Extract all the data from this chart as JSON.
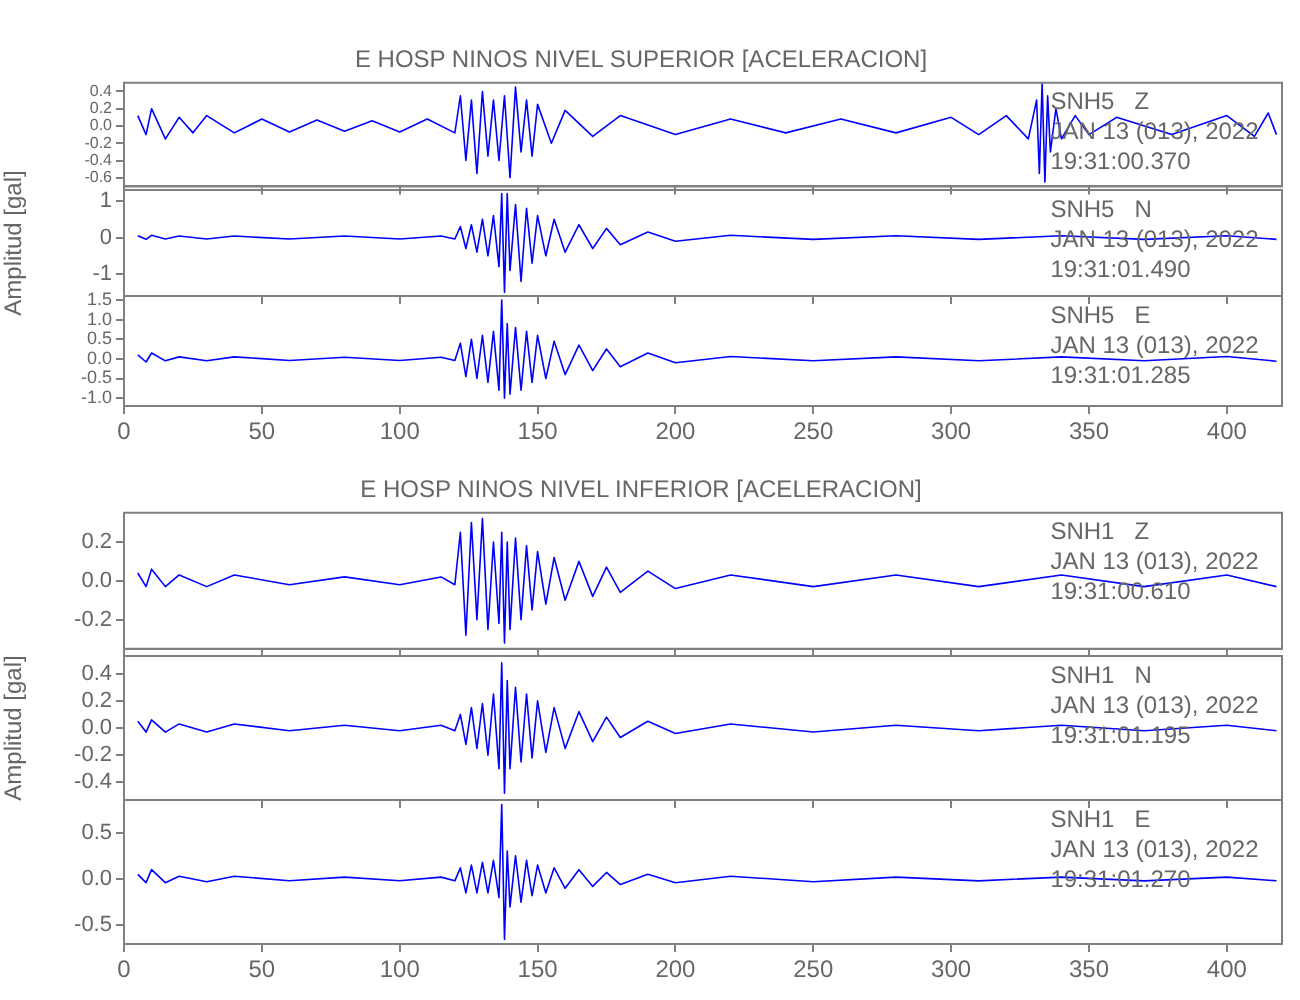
{
  "chart_data": [
    {
      "type": "line",
      "title": "E HOSP NINOS NIVEL SUPERIOR [ACELERACION]",
      "annotations": [
        "SNH5   Z",
        "JAN 13 (013), 2022",
        "19:31:00.370"
      ],
      "x": [
        5,
        8,
        10,
        15,
        20,
        25,
        30,
        40,
        50,
        60,
        70,
        80,
        90,
        100,
        110,
        120,
        122,
        124,
        126,
        128,
        130,
        132,
        134,
        136,
        138,
        140,
        142,
        144,
        146,
        148,
        150,
        155,
        160,
        170,
        180,
        200,
        220,
        240,
        260,
        280,
        300,
        310,
        320,
        328,
        331,
        332,
        333,
        334,
        335,
        336,
        338,
        340,
        345,
        350,
        360,
        380,
        400,
        410,
        415,
        418
      ],
      "series": [
        {
          "color": "#0000ff",
          "values": [
            0.12,
            -0.1,
            0.2,
            -0.15,
            0.1,
            -0.08,
            0.12,
            -0.08,
            0.08,
            -0.07,
            0.07,
            -0.06,
            0.06,
            -0.07,
            0.08,
            -0.08,
            0.35,
            -0.4,
            0.3,
            -0.55,
            0.4,
            -0.35,
            0.3,
            -0.4,
            0.35,
            -0.6,
            0.45,
            -0.3,
            0.3,
            -0.35,
            0.25,
            -0.2,
            0.18,
            -0.12,
            0.12,
            -0.1,
            0.08,
            -0.08,
            0.08,
            -0.08,
            0.1,
            -0.1,
            0.12,
            -0.15,
            0.3,
            -0.55,
            0.5,
            -0.65,
            0.35,
            -0.3,
            0.2,
            -0.15,
            0.12,
            -0.1,
            0.1,
            -0.1,
            0.12,
            -0.12,
            0.15,
            -0.1
          ]
        }
      ],
      "xlim": [
        0,
        420
      ],
      "xticks": [
        0,
        50,
        100,
        150,
        200,
        250,
        300,
        350,
        400
      ],
      "ylim": [
        -0.7,
        0.5
      ],
      "yticks": [
        -0.6,
        -0.4,
        -0.2,
        {
          "value": 0,
          "label": "0.0"
        },
        0.2,
        0.4
      ],
      "grid": false,
      "legend": false,
      "marker": "none",
      "tick_labels": "y"
    },
    {
      "type": "line",
      "ylabel": "Amplitud [gal]",
      "annotations": [
        "SNH5   N",
        "JAN 13 (013), 2022",
        "19:31:01.490"
      ],
      "x": [
        5,
        8,
        10,
        15,
        20,
        30,
        40,
        60,
        80,
        100,
        115,
        120,
        122,
        124,
        126,
        128,
        130,
        132,
        134,
        136,
        137,
        138,
        139,
        140,
        142,
        144,
        146,
        148,
        150,
        153,
        156,
        160,
        165,
        170,
        175,
        180,
        190,
        200,
        220,
        250,
        280,
        310,
        340,
        370,
        400,
        418
      ],
      "series": [
        {
          "color": "#0000ff",
          "values": [
            0.05,
            -0.05,
            0.06,
            -0.04,
            0.04,
            -0.04,
            0.04,
            -0.04,
            0.04,
            -0.04,
            0.04,
            -0.04,
            0.3,
            -0.3,
            0.35,
            -0.4,
            0.5,
            -0.5,
            0.6,
            -0.8,
            1.2,
            -1.5,
            1.2,
            -0.9,
            0.9,
            -1.2,
            0.8,
            -0.7,
            0.6,
            -0.5,
            0.5,
            -0.4,
            0.35,
            -0.3,
            0.25,
            -0.2,
            0.15,
            -0.1,
            0.06,
            -0.05,
            0.05,
            -0.05,
            0.05,
            -0.05,
            0.05,
            -0.05
          ]
        }
      ],
      "xlim": [
        0,
        420
      ],
      "xticks": [
        0,
        50,
        100,
        150,
        200,
        250,
        300,
        350,
        400
      ],
      "ylim": [
        -1.6,
        1.3
      ],
      "yticks": [
        -1,
        0,
        1
      ],
      "grid": false,
      "legend": false,
      "marker": "none",
      "tick_labels": "y"
    },
    {
      "type": "line",
      "annotations": [
        "SNH5   E",
        "JAN 13 (013), 2022",
        "19:31:01.285"
      ],
      "x": [
        5,
        8,
        10,
        15,
        20,
        30,
        40,
        60,
        80,
        100,
        115,
        120,
        122,
        124,
        126,
        128,
        130,
        132,
        134,
        136,
        137,
        138,
        139,
        140,
        142,
        144,
        146,
        148,
        150,
        153,
        156,
        160,
        165,
        170,
        175,
        180,
        190,
        200,
        220,
        250,
        280,
        310,
        340,
        370,
        400,
        418
      ],
      "series": [
        {
          "color": "#0000ff",
          "values": [
            0.1,
            -0.08,
            0.15,
            -0.05,
            0.05,
            -0.05,
            0.05,
            -0.04,
            0.04,
            -0.04,
            0.04,
            -0.04,
            0.4,
            -0.45,
            0.5,
            -0.5,
            0.6,
            -0.6,
            0.7,
            -0.8,
            1.5,
            -1.0,
            0.9,
            -0.9,
            0.8,
            -0.8,
            0.7,
            -0.6,
            0.6,
            -0.5,
            0.45,
            -0.4,
            0.35,
            -0.3,
            0.25,
            -0.2,
            0.15,
            -0.1,
            0.06,
            -0.05,
            0.05,
            -0.05,
            0.05,
            -0.05,
            0.06,
            -0.06
          ]
        }
      ],
      "xlim": [
        0,
        420
      ],
      "xticks": [
        0,
        50,
        100,
        150,
        200,
        250,
        300,
        350,
        400
      ],
      "ylim": [
        -1.2,
        1.6
      ],
      "yticks": [
        {
          "value": -1,
          "label": "-1.0"
        },
        -0.5,
        {
          "value": 0,
          "label": "0.0"
        },
        0.5,
        {
          "value": 1,
          "label": "1.0"
        },
        1.5
      ],
      "grid": false,
      "legend": false,
      "marker": "none"
    },
    {
      "type": "line",
      "title": "E HOSP NINOS NIVEL INFERIOR [ACELERACION]",
      "annotations": [
        "SNH1   Z",
        "JAN 13 (013), 2022",
        "19:31:00.610"
      ],
      "x": [
        5,
        8,
        10,
        15,
        20,
        30,
        40,
        60,
        80,
        100,
        115,
        120,
        122,
        124,
        126,
        128,
        130,
        132,
        134,
        136,
        137,
        138,
        139,
        140,
        142,
        144,
        146,
        148,
        150,
        153,
        156,
        160,
        165,
        170,
        175,
        180,
        190,
        200,
        220,
        250,
        280,
        310,
        340,
        370,
        400,
        418
      ],
      "series": [
        {
          "color": "#0000ff",
          "values": [
            0.04,
            -0.03,
            0.06,
            -0.03,
            0.03,
            -0.03,
            0.03,
            -0.02,
            0.02,
            -0.02,
            0.02,
            -0.02,
            0.25,
            -0.28,
            0.3,
            -0.2,
            0.32,
            -0.25,
            0.2,
            -0.22,
            0.25,
            -0.32,
            0.2,
            -0.25,
            0.22,
            -0.2,
            0.18,
            -0.15,
            0.15,
            -0.12,
            0.12,
            -0.1,
            0.1,
            -0.08,
            0.07,
            -0.06,
            0.05,
            -0.04,
            0.03,
            -0.03,
            0.03,
            -0.03,
            0.03,
            -0.03,
            0.03,
            -0.03
          ]
        }
      ],
      "xlim": [
        0,
        420
      ],
      "xticks": [
        0,
        50,
        100,
        150,
        200,
        250,
        300,
        350,
        400
      ],
      "ylim": [
        -0.35,
        0.35
      ],
      "yticks": [
        -0.2,
        {
          "value": 0,
          "label": "0.0"
        },
        0.2
      ],
      "grid": false,
      "legend": false,
      "marker": "none",
      "tick_labels": "y"
    },
    {
      "type": "line",
      "ylabel": "Amplitud [gal]",
      "annotations": [
        "SNH1   N",
        "JAN 13 (013), 2022",
        "19:31:01.195"
      ],
      "x": [
        5,
        8,
        10,
        15,
        20,
        30,
        40,
        60,
        80,
        100,
        115,
        120,
        122,
        124,
        126,
        128,
        130,
        132,
        134,
        136,
        137,
        138,
        139,
        140,
        142,
        144,
        146,
        148,
        150,
        153,
        156,
        160,
        165,
        170,
        175,
        180,
        190,
        200,
        220,
        250,
        280,
        310,
        340,
        370,
        400,
        418
      ],
      "series": [
        {
          "color": "#0000ff",
          "values": [
            0.05,
            -0.03,
            0.06,
            -0.03,
            0.03,
            -0.03,
            0.03,
            -0.02,
            0.02,
            -0.02,
            0.02,
            -0.02,
            0.1,
            -0.12,
            0.15,
            -0.15,
            0.18,
            -0.2,
            0.25,
            -0.3,
            0.48,
            -0.48,
            0.35,
            -0.3,
            0.3,
            -0.25,
            0.25,
            -0.22,
            0.2,
            -0.18,
            0.15,
            -0.15,
            0.12,
            -0.1,
            0.08,
            -0.07,
            0.05,
            -0.04,
            0.03,
            -0.03,
            0.02,
            -0.02,
            0.02,
            -0.02,
            0.02,
            -0.02
          ]
        }
      ],
      "xlim": [
        0,
        420
      ],
      "xticks": [
        0,
        50,
        100,
        150,
        200,
        250,
        300,
        350,
        400
      ],
      "ylim": [
        -0.53,
        0.53
      ],
      "yticks": [
        -0.4,
        -0.2,
        {
          "value": 0,
          "label": "0.0"
        },
        0.2,
        0.4
      ],
      "grid": false,
      "legend": false,
      "marker": "none",
      "tick_labels": "y"
    },
    {
      "type": "line",
      "annotations": [
        "SNH1   E",
        "JAN 13 (013), 2022",
        "19:31:01.270"
      ],
      "x": [
        5,
        8,
        10,
        15,
        20,
        30,
        40,
        60,
        80,
        100,
        115,
        120,
        122,
        124,
        126,
        128,
        130,
        132,
        134,
        136,
        137,
        138,
        139,
        140,
        142,
        144,
        146,
        148,
        150,
        153,
        156,
        160,
        165,
        170,
        175,
        180,
        190,
        200,
        220,
        250,
        280,
        310,
        340,
        370,
        400,
        418
      ],
      "series": [
        {
          "color": "#0000ff",
          "values": [
            0.05,
            -0.04,
            0.1,
            -0.04,
            0.03,
            -0.03,
            0.03,
            -0.02,
            0.02,
            -0.02,
            0.02,
            -0.02,
            0.12,
            -0.15,
            0.15,
            -0.15,
            0.18,
            -0.15,
            0.2,
            -0.2,
            0.8,
            -0.65,
            0.3,
            -0.3,
            0.25,
            -0.25,
            0.2,
            -0.18,
            0.15,
            -0.15,
            0.12,
            -0.1,
            0.1,
            -0.08,
            0.07,
            -0.06,
            0.05,
            -0.04,
            0.03,
            -0.03,
            0.02,
            -0.02,
            0.02,
            -0.02,
            0.02,
            -0.02
          ]
        }
      ],
      "xlim": [
        0,
        420
      ],
      "xticks": [
        0,
        50,
        100,
        150,
        200,
        250,
        300,
        350,
        400
      ],
      "ylim": [
        -0.7,
        0.85
      ],
      "yticks": [
        -0.5,
        {
          "value": 0,
          "label": "0.0"
        },
        0.5
      ],
      "grid": false,
      "legend": false,
      "marker": "none"
    }
  ]
}
